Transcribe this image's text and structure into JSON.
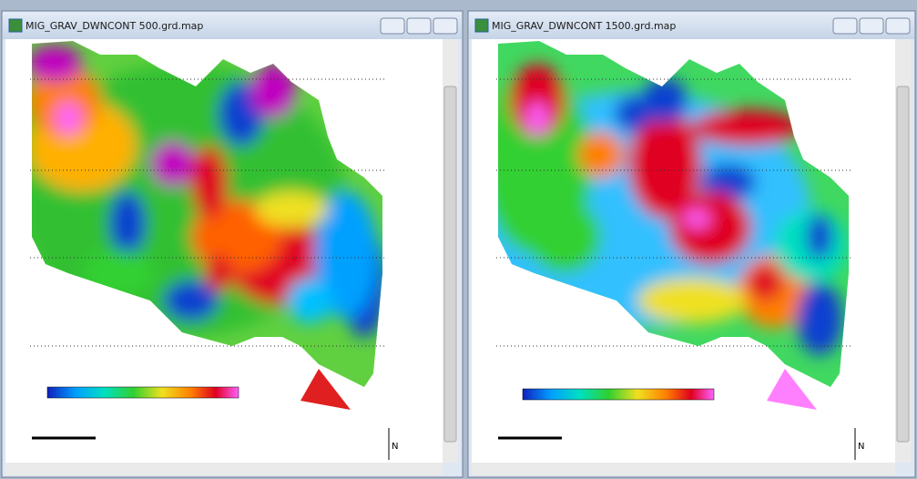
{
  "windows": [
    {
      "title": "MIG_GRAV_DWNCONT 500.grd.map",
      "north_label": "N"
    },
    {
      "title": "MIG_GRAV_DWNCONT 1500.grd.map",
      "north_label": "N"
    }
  ]
}
